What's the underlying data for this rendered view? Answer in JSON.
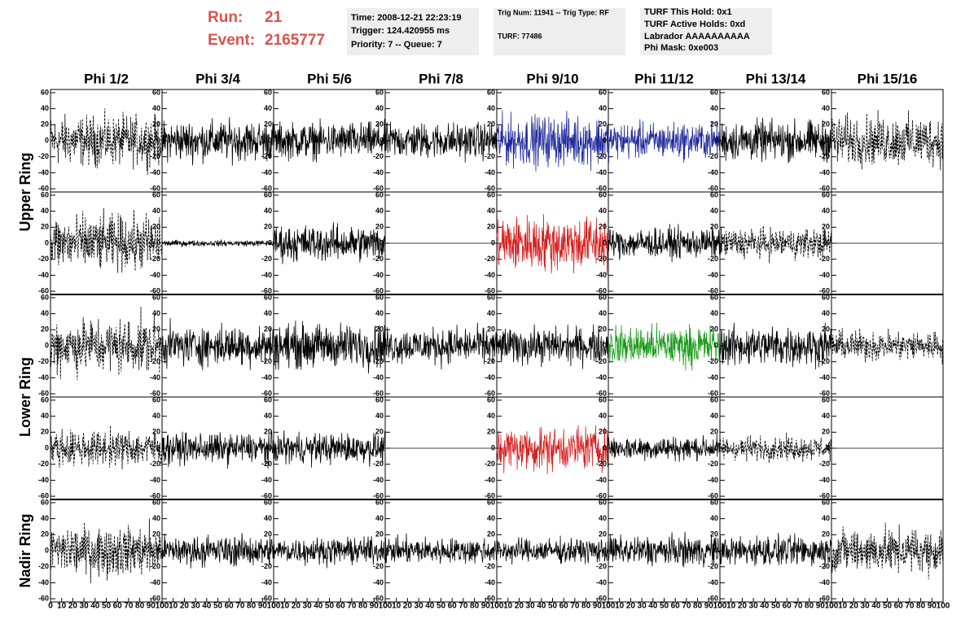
{
  "header": {
    "run_label": "Run:",
    "run": 21,
    "event_label": "Event:",
    "event": 2165777,
    "info": [
      [
        "Time: 2008-12-21 22:23:19",
        "Trigger: 124.420955 ms",
        "Priority: 7 -- Queue: 7"
      ],
      [
        "Trig Num: 11941 -- Trig Type: RF",
        "TURF: 77486"
      ],
      [
        "TURF This Hold: 0x1",
        "TURF Active Holds: 0xd",
        "Labrador AAAAAAAAAA",
        "Phi Mask: 0xe003"
      ]
    ]
  },
  "columns": [
    "Phi 1/2",
    "Phi 3/4",
    "Phi 5/6",
    "Phi 7/8",
    "Phi 9/10",
    "Phi 11/12",
    "Phi 13/14",
    "Phi 15/16"
  ],
  "rings": [
    "Upper Ring",
    "Lower Ring",
    "Nadir Ring"
  ],
  "xlim": [
    0,
    100
  ],
  "xticks": [
    0,
    10,
    20,
    30,
    40,
    50,
    60,
    70,
    80,
    90,
    100
  ],
  "ylim": [
    -64,
    64
  ],
  "yticks": [
    -60,
    -40,
    -20,
    0,
    20,
    40,
    60
  ],
  "panels": [
    [
      {
        "style": "dashed",
        "color": "#000000",
        "amp": 25
      },
      {
        "style": "solid",
        "color": "#000000",
        "amp": 20
      },
      {
        "style": "solid",
        "color": "#000000",
        "amp": 18
      },
      {
        "style": "solid",
        "color": "#000000",
        "amp": 18
      },
      {
        "style": "solid",
        "color": "#1f2a9a",
        "amp": 25
      },
      {
        "style": "solid",
        "color": "#1f2a9a",
        "amp": 18
      },
      {
        "style": "solid",
        "color": "#000000",
        "amp": 20
      },
      {
        "style": "dashed",
        "color": "#000000",
        "amp": 25
      }
    ],
    [
      {
        "style": "dashed",
        "color": "#000000",
        "amp": 28
      },
      {
        "style": "solid",
        "color": "#000000",
        "amp": 3
      },
      {
        "style": "solid",
        "color": "#000000",
        "amp": 18
      },
      {
        "style": "solid",
        "color": "#000000",
        "amp": 0
      },
      {
        "style": "solid",
        "color": "#d42020",
        "amp": 28
      },
      {
        "style": "solid",
        "color": "#000000",
        "amp": 15
      },
      {
        "style": "dashed",
        "color": "#000000",
        "amp": 15
      },
      {
        "style": "solid",
        "color": "#000000",
        "amp": 0
      }
    ],
    [
      {
        "style": "dashed",
        "color": "#000000",
        "amp": 28
      },
      {
        "style": "solid",
        "color": "#000000",
        "amp": 20
      },
      {
        "style": "solid",
        "color": "#000000",
        "amp": 22
      },
      {
        "style": "solid",
        "color": "#000000",
        "amp": 18
      },
      {
        "style": "solid",
        "color": "#000000",
        "amp": 18
      },
      {
        "style": "solid",
        "color": "#1a9a1a",
        "amp": 20
      },
      {
        "style": "solid",
        "color": "#000000",
        "amp": 20
      },
      {
        "style": "dashed",
        "color": "#000000",
        "amp": 15
      }
    ],
    [
      {
        "style": "dashed",
        "color": "#000000",
        "amp": 18
      },
      {
        "style": "solid",
        "color": "#000000",
        "amp": 15
      },
      {
        "style": "solid",
        "color": "#000000",
        "amp": 15
      },
      {
        "style": "solid",
        "color": "#000000",
        "amp": 0
      },
      {
        "style": "solid",
        "color": "#d42020",
        "amp": 22
      },
      {
        "style": "solid",
        "color": "#000000",
        "amp": 12
      },
      {
        "style": "dashed",
        "color": "#000000",
        "amp": 12
      },
      {
        "style": "solid",
        "color": "#000000",
        "amp": 0
      }
    ],
    [
      {
        "style": "dashed",
        "color": "#000000",
        "amp": 25
      },
      {
        "style": "solid",
        "color": "#000000",
        "amp": 15
      },
      {
        "style": "solid",
        "color": "#000000",
        "amp": 13
      },
      {
        "style": "solid",
        "color": "#000000",
        "amp": 13
      },
      {
        "style": "solid",
        "color": "#000000",
        "amp": 12
      },
      {
        "style": "solid",
        "color": "#000000",
        "amp": 15
      },
      {
        "style": "solid",
        "color": "#000000",
        "amp": 15
      },
      {
        "style": "dashed",
        "color": "#000000",
        "amp": 22
      }
    ]
  ]
}
